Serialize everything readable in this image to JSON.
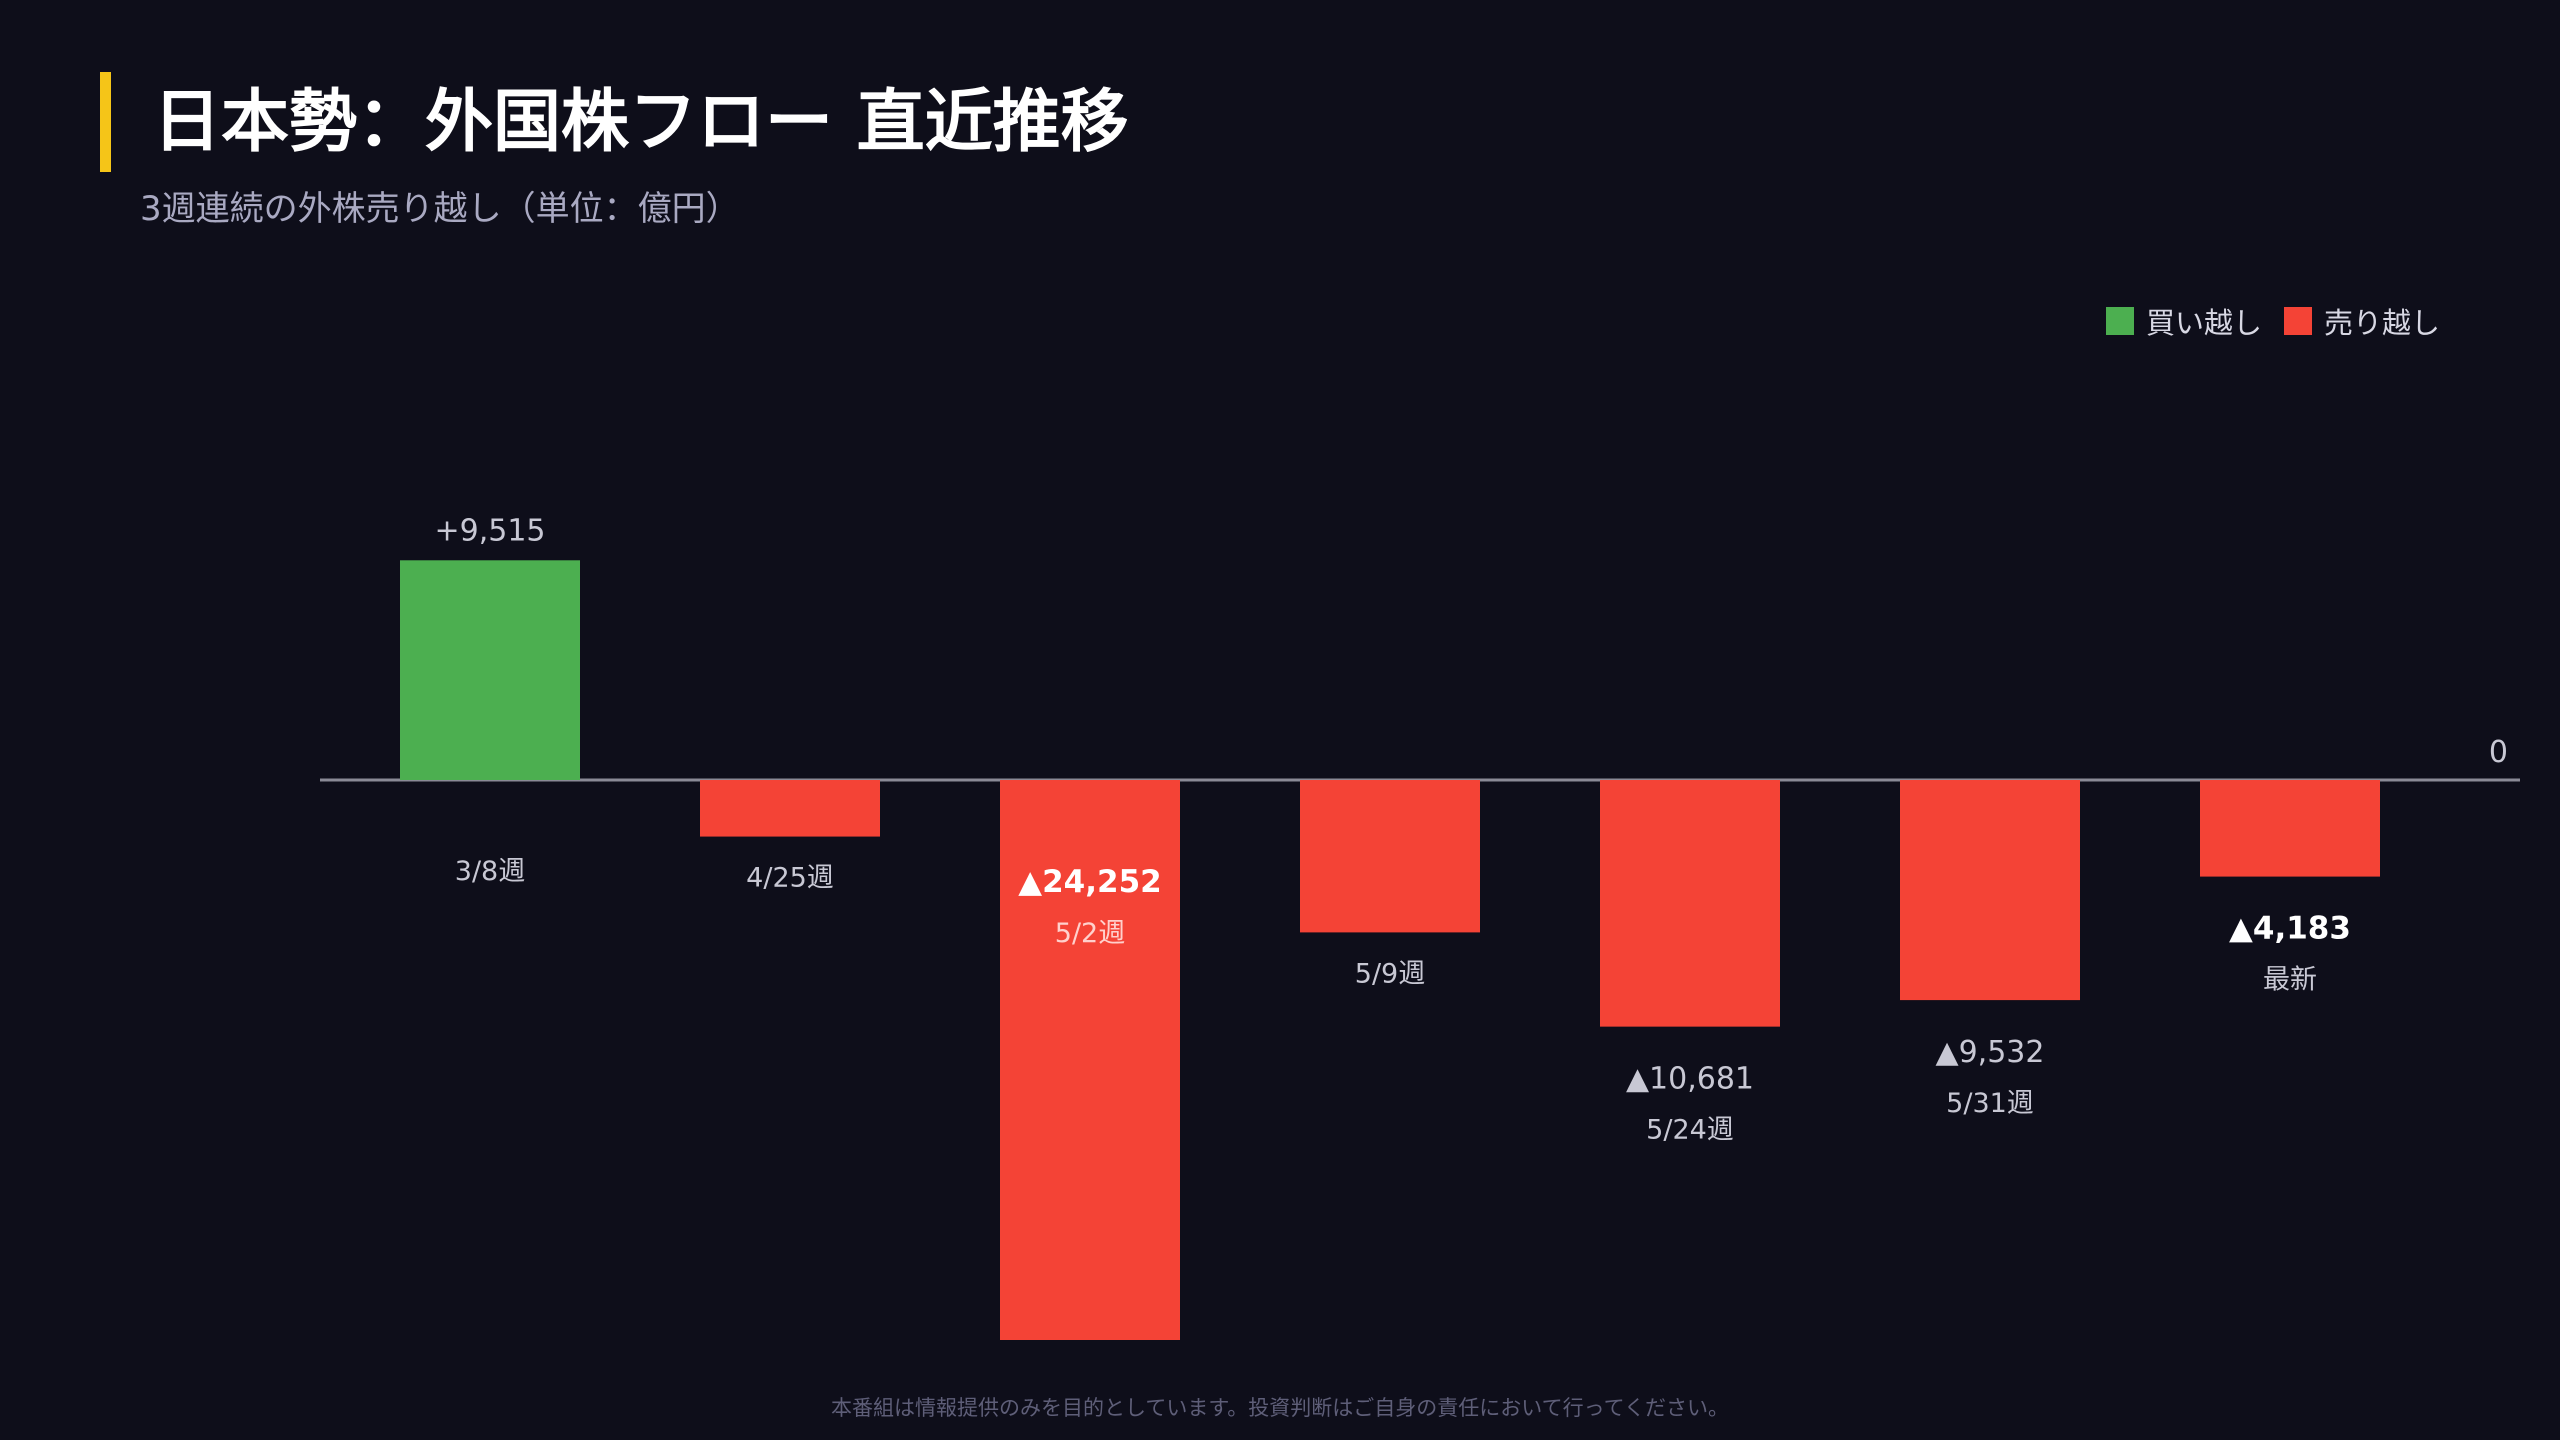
{
  "header": {
    "title": "日本勢：外国株フロー 直近推移",
    "subtitle": "3週連続の外株売り越し（単位：億円）"
  },
  "legend": {
    "items": [
      {
        "label": "買い越し",
        "color": "#4caf50"
      },
      {
        "label": "売り越し",
        "color": "#f44336"
      }
    ]
  },
  "colors": {
    "accent": "#f5c518",
    "positive": "#4caf50",
    "negative": "#f44336",
    "background": "#0e0e1a"
  },
  "chart_data": {
    "type": "bar",
    "categories": [
      "3/8週",
      "4/25週",
      "5/2週",
      "5/9週",
      "5/24週",
      "5/31週",
      "最新"
    ],
    "values": [
      9515,
      -2450,
      -24252,
      -6600,
      -10681,
      -9532,
      -4183
    ],
    "data_labels": [
      "+9,515",
      "",
      "▲24,252",
      "",
      "▲10,681",
      "▲9,532",
      "▲4,183"
    ],
    "highlighted": [
      false,
      false,
      true,
      false,
      false,
      false,
      true
    ],
    "zero_label": "0",
    "ylim": [
      -25000,
      10000
    ]
  },
  "footer": {
    "disclaimer": "本番組は情報提供のみを目的としています。投資判断はご自身の責任において行ってください。"
  }
}
